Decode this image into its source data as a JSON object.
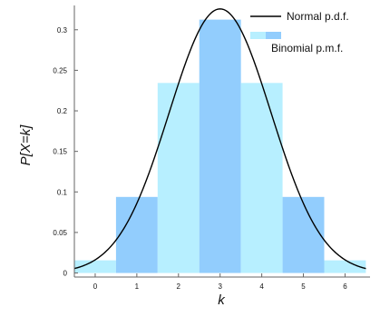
{
  "chart_data": {
    "type": "bar",
    "title": "",
    "xlabel": "k",
    "ylabel": "P[X=k]",
    "xlim": [
      -0.5,
      6.6
    ],
    "ylim": [
      -0.005,
      0.33
    ],
    "grid": "none",
    "legend_position": "top-right",
    "colors": {
      "bar_light": "#b7efff",
      "bar_dark": "#92cdfd",
      "curve": "#000000",
      "axis": "#666666",
      "text": "#111111"
    },
    "x_ticks": [
      0,
      1,
      2,
      3,
      4,
      5,
      6
    ],
    "y_ticks": [
      0,
      0.05,
      0.1,
      0.15,
      0.2,
      0.25,
      0.3
    ],
    "y_tick_labels": [
      "0",
      "0.05",
      "0.1",
      "0.15",
      "0.2",
      "0.25",
      "0.3"
    ],
    "categories": [
      0,
      1,
      2,
      3,
      4,
      5,
      6
    ],
    "values": [
      0.0156,
      0.0938,
      0.2344,
      0.3125,
      0.2344,
      0.0938,
      0.0156
    ],
    "series": [
      {
        "name": "Binomial p.m.f.",
        "kind": "bars",
        "x": [
          0,
          1,
          2,
          3,
          4,
          5,
          6
        ],
        "values": [
          0.0156,
          0.0938,
          0.2344,
          0.3125,
          0.2344,
          0.0938,
          0.0156
        ]
      },
      {
        "name": "Normal p.d.f.",
        "kind": "line",
        "mean": 3,
        "sd": 1.2247,
        "x_range": [
          -0.5,
          6.5
        ]
      }
    ],
    "legend": [
      {
        "label": "Normal p.d.f.",
        "symbol": "line"
      },
      {
        "label": "Binomial p.m.f.",
        "symbol": "bar"
      }
    ]
  }
}
